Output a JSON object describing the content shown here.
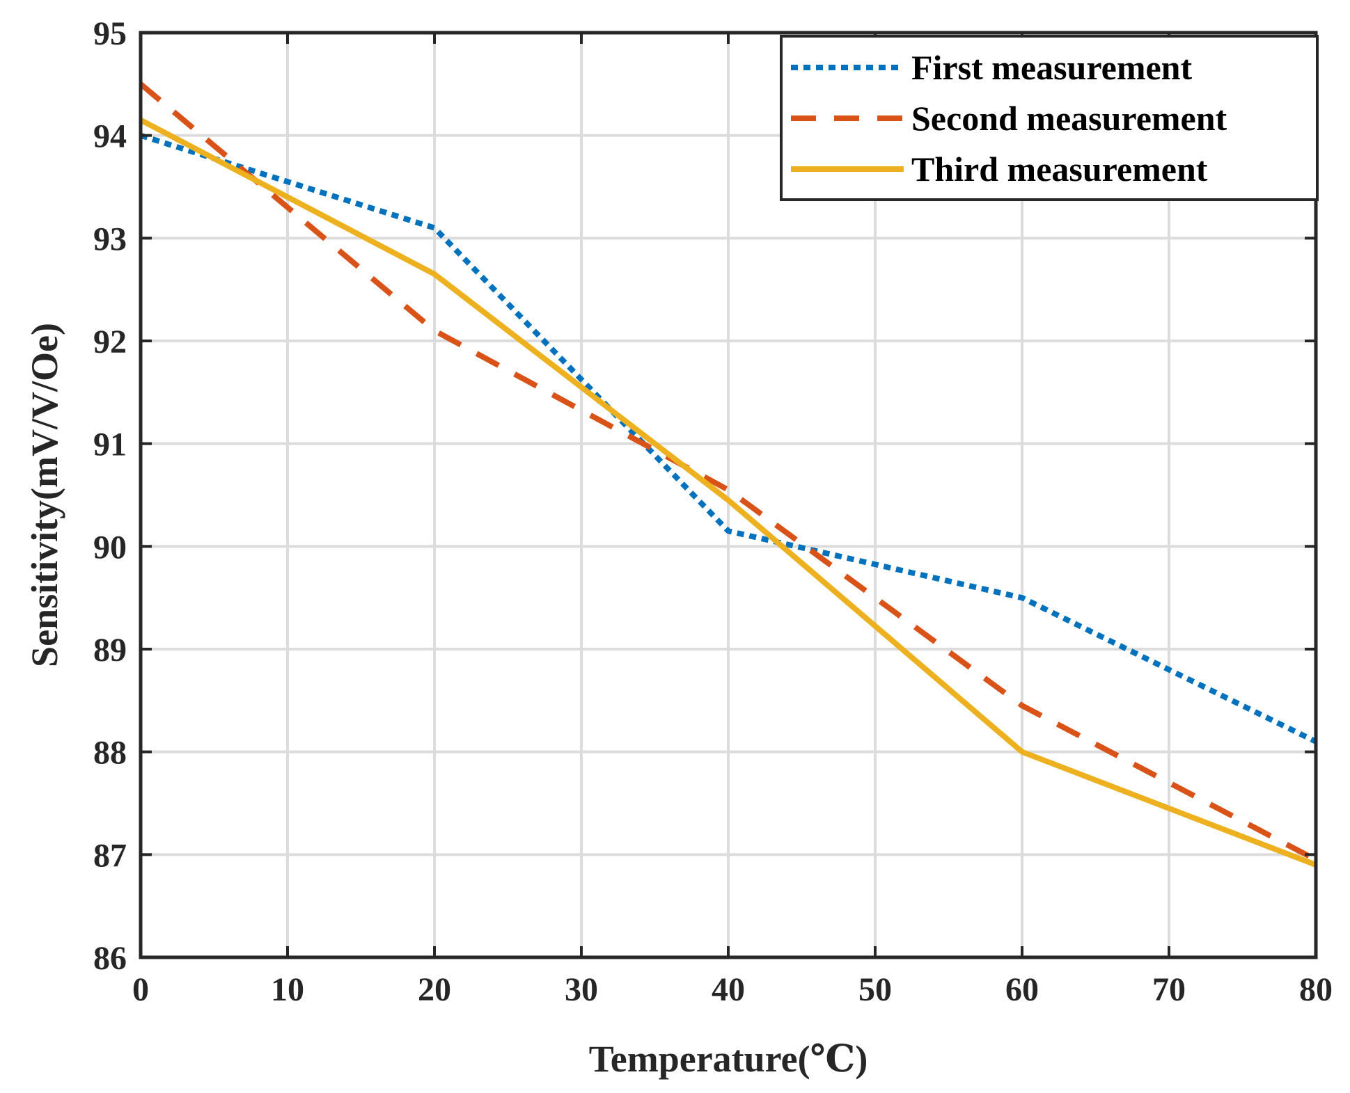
{
  "chart_data": {
    "type": "line",
    "title": "",
    "xlabel": "Temperature(℃)",
    "ylabel": "Sensitivity(mV/V/Oe)",
    "xlim": [
      0,
      80
    ],
    "ylim": [
      86,
      95
    ],
    "xticks": [
      0,
      10,
      20,
      30,
      40,
      50,
      60,
      70,
      80
    ],
    "yticks": [
      86,
      87,
      88,
      89,
      90,
      91,
      92,
      93,
      94,
      95
    ],
    "grid": true,
    "legend_position": "top-right",
    "x": [
      0,
      20,
      40,
      60,
      80
    ],
    "series": [
      {
        "name": "First measurement",
        "style": "dotted",
        "color": "#0072BD",
        "values": [
          94.0,
          93.1,
          90.15,
          89.5,
          88.1
        ]
      },
      {
        "name": "Second measurement",
        "style": "dashed",
        "color": "#D95319",
        "values": [
          94.5,
          92.1,
          90.55,
          88.45,
          86.95
        ]
      },
      {
        "name": "Third measurement",
        "style": "solid",
        "color": "#EDB120",
        "values": [
          94.15,
          92.65,
          90.45,
          88.0,
          86.9
        ]
      }
    ]
  }
}
